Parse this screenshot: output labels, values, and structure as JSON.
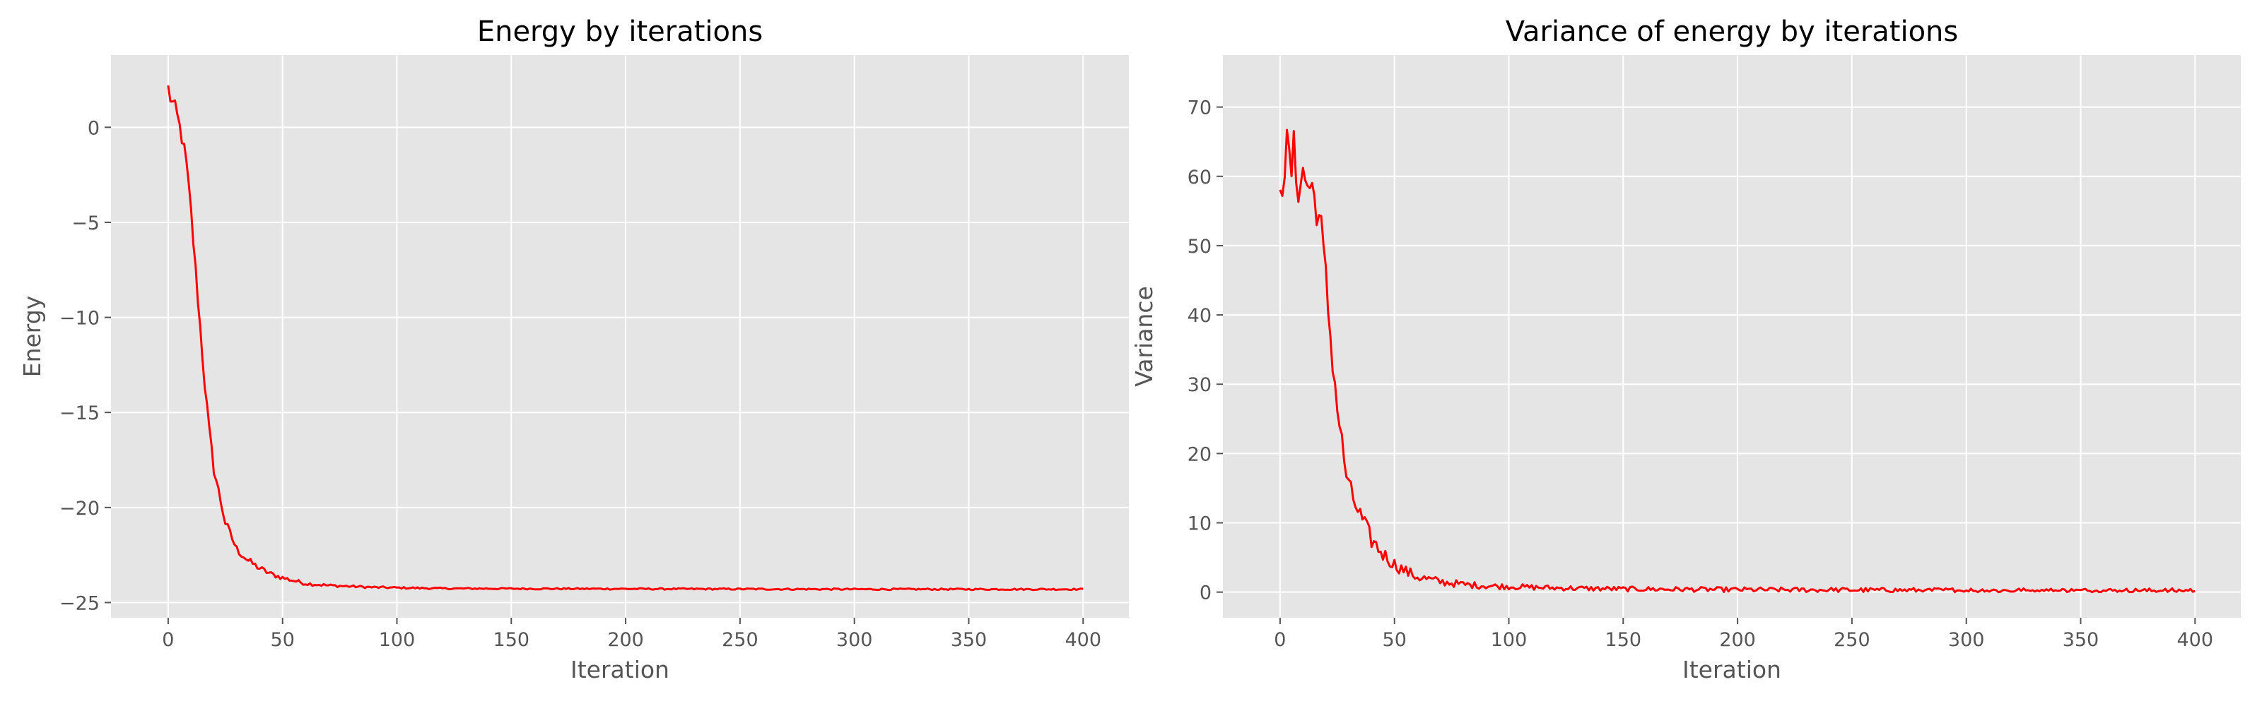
{
  "chart_data": [
    {
      "type": "line",
      "title": "Energy by iterations",
      "xlabel": "Iteration",
      "ylabel": "Energy",
      "xlim": [
        -25,
        420
      ],
      "ylim": [
        -25.8,
        3.8
      ],
      "xticks": [
        0,
        50,
        100,
        150,
        200,
        250,
        300,
        350,
        400
      ],
      "yticks": [
        -25,
        -20,
        -15,
        -10,
        -5,
        0
      ],
      "yticklabels": [
        "−25",
        "−20",
        "−15",
        "−10",
        "−5",
        "0"
      ],
      "grid": true,
      "series": [
        {
          "color": "#ff0000",
          "x": [
            0,
            2,
            4,
            6,
            8,
            10,
            12,
            14,
            16,
            18,
            20,
            25,
            30,
            35,
            40,
            45,
            50,
            55,
            60,
            70,
            80,
            90,
            100,
            110,
            120,
            150,
            200,
            250,
            300,
            350,
            400
          ],
          "y": [
            2.0,
            1.2,
            0.5,
            -0.5,
            -2.0,
            -4.5,
            -7.5,
            -10.5,
            -13.5,
            -16.0,
            -18.0,
            -20.8,
            -22.2,
            -22.8,
            -23.2,
            -23.5,
            -23.7,
            -23.85,
            -24.0,
            -24.1,
            -24.15,
            -24.2,
            -24.22,
            -24.24,
            -24.26,
            -24.27,
            -24.28,
            -24.29,
            -24.3,
            -24.3,
            -24.3
          ]
        }
      ]
    },
    {
      "type": "line",
      "title": "Variance of energy by iterations",
      "xlabel": "Iteration",
      "ylabel": "Variance",
      "xlim": [
        -25,
        420
      ],
      "ylim": [
        -3.7,
        77.5
      ],
      "xticks": [
        0,
        50,
        100,
        150,
        200,
        250,
        300,
        350,
        400
      ],
      "yticks": [
        0,
        10,
        20,
        30,
        40,
        50,
        60,
        70
      ],
      "yticklabels": [
        "0",
        "10",
        "20",
        "30",
        "40",
        "50",
        "60",
        "70"
      ],
      "grid": true,
      "series": [
        {
          "color": "#ff0000",
          "x": [
            0,
            2,
            4,
            6,
            8,
            10,
            12,
            14,
            16,
            18,
            20,
            22,
            24,
            26,
            28,
            30,
            35,
            40,
            45,
            50,
            55,
            60,
            70,
            80,
            90,
            100,
            120,
            150,
            200,
            250,
            300,
            350,
            400
          ],
          "y": [
            62,
            63,
            61,
            62,
            60,
            60,
            59,
            58,
            56,
            52,
            45,
            37,
            30,
            24,
            19,
            15,
            11,
            7.5,
            5.5,
            4.0,
            3.0,
            2.2,
            1.5,
            1.1,
            0.9,
            0.8,
            0.6,
            0.45,
            0.35,
            0.3,
            0.25,
            0.2,
            0.2
          ]
        }
      ]
    }
  ]
}
